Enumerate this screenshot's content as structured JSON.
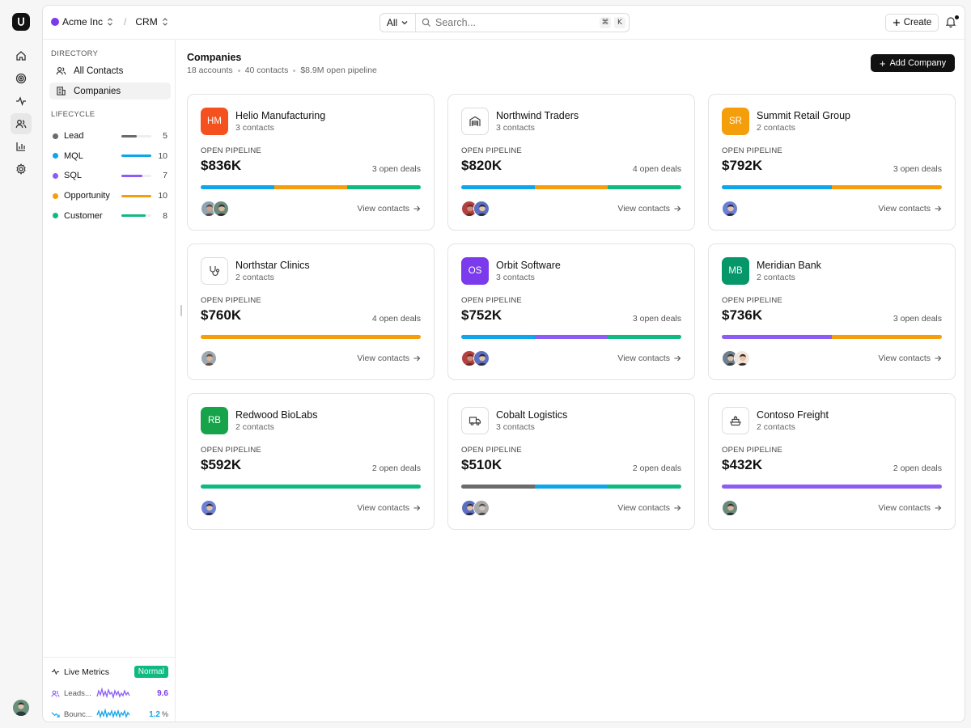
{
  "app": {
    "logo_letter": "U"
  },
  "topbar": {
    "workspace": "Acme Inc",
    "separator": "/",
    "module": "CRM",
    "search_scope": "All",
    "search_placeholder": "Search...",
    "kbd_cmd": "⌘",
    "kbd_key": "K",
    "create_label": "Create"
  },
  "sidebar": {
    "directory_label": "DIRECTORY",
    "items": [
      {
        "label": "All Contacts",
        "icon": "users-icon"
      },
      {
        "label": "Companies",
        "icon": "building-icon",
        "active": true
      }
    ],
    "lifecycle_label": "LIFECYCLE",
    "lifecycle": [
      {
        "name": "Lead",
        "count": "5",
        "color": "#6b6b6b",
        "fraction": 0.5
      },
      {
        "name": "MQL",
        "count": "10",
        "color": "#0ea5e9",
        "fraction": 1.0
      },
      {
        "name": "SQL",
        "count": "7",
        "color": "#8b5cf6",
        "fraction": 0.7
      },
      {
        "name": "Opportunity",
        "count": "10",
        "color": "#f59e0b",
        "fraction": 1.0
      },
      {
        "name": "Customer",
        "count": "8",
        "color": "#10b981",
        "fraction": 0.8
      }
    ],
    "metrics": {
      "title": "Live Metrics",
      "status": "Normal",
      "rows": [
        {
          "name": "Leads...",
          "value": "9.6",
          "unit": "",
          "color": "#8b5cf6"
        },
        {
          "name": "Bounc...",
          "value": "1.2",
          "unit": "%",
          "color": "#0ea5e9"
        }
      ]
    }
  },
  "main": {
    "title": "Companies",
    "stats": [
      "18 accounts",
      "40 contacts",
      "$8.9M open pipeline"
    ],
    "add_label": "Add Company",
    "pipeline_label": "OPEN PIPELINE",
    "view_label": "View contacts",
    "companies": [
      {
        "name": "Helio Manufacturing",
        "contacts": "3 contacts",
        "value": "$836K",
        "deals": "3 open deals",
        "initials": "HM",
        "icon_color": "#f4511e",
        "icon": "",
        "bar": [
          {
            "color": "#0ea5e9",
            "share": 1
          },
          {
            "color": "#f59e0b",
            "share": 1
          },
          {
            "color": "#10b981",
            "share": 1
          }
        ],
        "avatars": [
          {
            "skin": "#c9a38a",
            "hair": "#5b4a3c",
            "bg": "#8fa3b4"
          },
          {
            "skin": "#d7b79d",
            "hair": "#2f2f2f",
            "bg": "#6c8a7c"
          }
        ]
      },
      {
        "name": "Northwind Traders",
        "contacts": "3 contacts",
        "value": "$820K",
        "deals": "4 open deals",
        "initials": "",
        "icon_color": "",
        "icon": "warehouse-icon",
        "bar": [
          {
            "color": "#0ea5e9",
            "share": 1
          },
          {
            "color": "#f59e0b",
            "share": 1
          },
          {
            "color": "#10b981",
            "share": 1
          }
        ],
        "avatars": [
          {
            "skin": "#c98e7a",
            "hair": "#6b2a22",
            "bg": "#b34141"
          },
          {
            "skin": "#e2c2a8",
            "hair": "#2c2c3a",
            "bg": "#5a6fc2"
          }
        ]
      },
      {
        "name": "Summit Retail Group",
        "contacts": "2 contacts",
        "value": "$792K",
        "deals": "3 open deals",
        "initials": "SR",
        "icon_color": "#f59e0b",
        "icon": "",
        "bar": [
          {
            "color": "#0ea5e9",
            "share": 1
          },
          {
            "color": "#f59e0b",
            "share": 1
          }
        ],
        "avatars": [
          {
            "skin": "#e2c2a8",
            "hair": "#2c2c3a",
            "bg": "#6a7fd6"
          }
        ]
      },
      {
        "name": "Northstar Clinics",
        "contacts": "2 contacts",
        "value": "$760K",
        "deals": "4 open deals",
        "initials": "",
        "icon_color": "",
        "icon": "stethoscope-icon",
        "bar": [
          {
            "color": "#f59e0b",
            "share": 1
          }
        ],
        "avatars": [
          {
            "skin": "#d7b79d",
            "hair": "#6b4b3a",
            "bg": "#9aa8b3"
          }
        ]
      },
      {
        "name": "Orbit Software",
        "contacts": "3 contacts",
        "value": "$752K",
        "deals": "3 open deals",
        "initials": "OS",
        "icon_color": "#7c3aed",
        "icon": "",
        "bar": [
          {
            "color": "#0ea5e9",
            "share": 1
          },
          {
            "color": "#8b5cf6",
            "share": 1
          },
          {
            "color": "#10b981",
            "share": 1
          }
        ],
        "avatars": [
          {
            "skin": "#c98e7a",
            "hair": "#6b2a22",
            "bg": "#b34141"
          },
          {
            "skin": "#e2c2a8",
            "hair": "#2c2c3a",
            "bg": "#5a6fc2"
          }
        ]
      },
      {
        "name": "Meridian Bank",
        "contacts": "2 contacts",
        "value": "$736K",
        "deals": "3 open deals",
        "initials": "MB",
        "icon_color": "#059669",
        "icon": "",
        "bar": [
          {
            "color": "#8b5cf6",
            "share": 1
          },
          {
            "color": "#f59e0b",
            "share": 1
          }
        ],
        "avatars": [
          {
            "skin": "#d9c1a8",
            "hair": "#3a3a3a",
            "bg": "#6e8090"
          },
          {
            "skin": "#e8c4a8",
            "hair": "#3b2a22",
            "bg": "#f0e6e0"
          }
        ]
      },
      {
        "name": "Redwood BioLabs",
        "contacts": "2 contacts",
        "value": "$592K",
        "deals": "2 open deals",
        "initials": "RB",
        "icon_color": "#16a34a",
        "icon": "",
        "bar": [
          {
            "color": "#10b981",
            "share": 1
          }
        ],
        "avatars": [
          {
            "skin": "#e2c2a8",
            "hair": "#2c2c3a",
            "bg": "#6a7fd6"
          }
        ]
      },
      {
        "name": "Cobalt Logistics",
        "contacts": "3 contacts",
        "value": "$510K",
        "deals": "2 open deals",
        "initials": "",
        "icon_color": "",
        "icon": "truck-icon",
        "bar": [
          {
            "color": "#6b6b6b",
            "share": 1
          },
          {
            "color": "#0ea5e9",
            "share": 1
          },
          {
            "color": "#10b981",
            "share": 1
          }
        ],
        "avatars": [
          {
            "skin": "#e2c2a8",
            "hair": "#2c2c3a",
            "bg": "#5a6fc2"
          },
          {
            "skin": "#cfc6bd",
            "hair": "#4a4a4a",
            "bg": "#a9a9a9"
          }
        ]
      },
      {
        "name": "Contoso Freight",
        "contacts": "2 contacts",
        "value": "$432K",
        "deals": "2 open deals",
        "initials": "",
        "icon_color": "",
        "icon": "ship-icon",
        "bar": [
          {
            "color": "#8b5cf6",
            "share": 1
          }
        ],
        "avatars": [
          {
            "skin": "#d7b79d",
            "hair": "#2f2f2f",
            "bg": "#6c8a7c"
          }
        ]
      }
    ]
  }
}
